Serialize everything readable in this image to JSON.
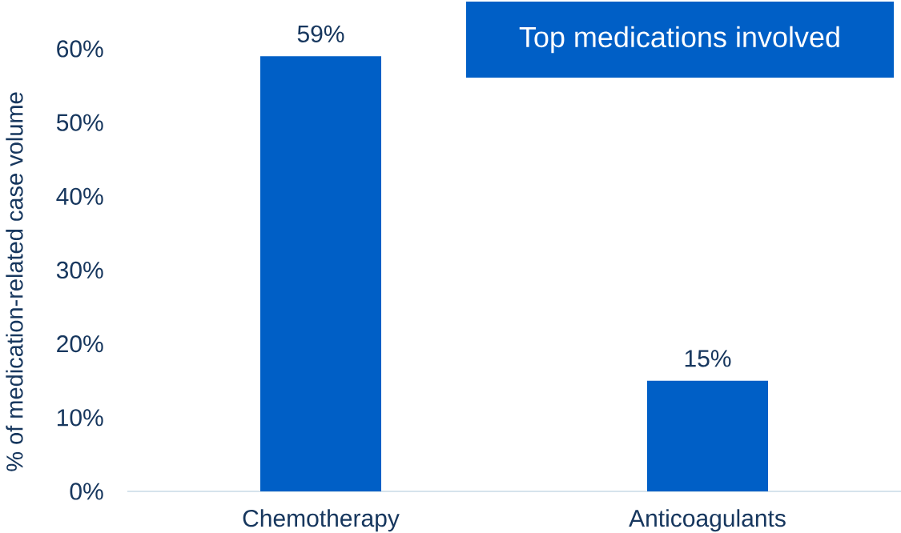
{
  "chart_data": {
    "type": "bar",
    "title": "Top medications involved",
    "ylabel": "% of medication-related case volume",
    "categories": [
      "Chemotherapy",
      "Anticoagulants"
    ],
    "values": [
      59,
      15
    ],
    "color": "#005fc6",
    "value_labels": [
      "59%",
      "15%"
    ],
    "ylim": [
      0,
      60
    ],
    "yticks": [
      {
        "value": 0,
        "label": "0%"
      },
      {
        "value": 10,
        "label": "10%"
      },
      {
        "value": 20,
        "label": "20%"
      },
      {
        "value": 30,
        "label": "30%"
      },
      {
        "value": 40,
        "label": "40%"
      },
      {
        "value": 50,
        "label": "50%"
      },
      {
        "value": 60,
        "label": "60%"
      }
    ]
  }
}
